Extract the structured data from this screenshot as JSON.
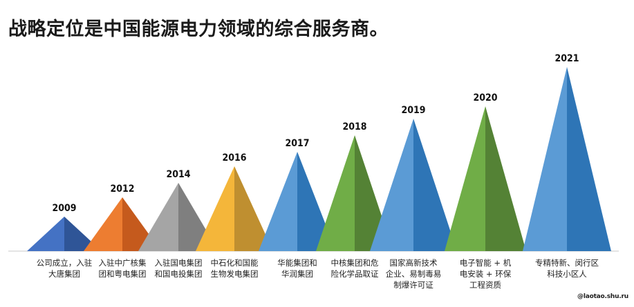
{
  "title": "战略定位是中国能源电力领域的综合服务商。",
  "milestones": [
    {
      "year": "2009",
      "label": "公司成立，入驻\n大唐集团",
      "color_left": "#4472c4",
      "color_right": "#2f5597"
    },
    {
      "year": "2012",
      "label": "入驻中广核集\n团和粤电集团",
      "color_left": "#ed7d31",
      "color_right": "#c55a1d"
    },
    {
      "year": "2014",
      "label": "入驻国电集团\n和国电投集团",
      "color_left": "#a5a5a5",
      "color_right": "#7f7f7f"
    },
    {
      "year": "2016",
      "label": "中石化和国能\n生物发电集团",
      "color_left": "#f4b63a",
      "color_right": "#bf8f30"
    },
    {
      "year": "2017",
      "label": "华能集团和\n华润集团",
      "color_left": "#5b9bd5",
      "color_right": "#2e75b6"
    },
    {
      "year": "2018",
      "label": "中核集团和危\n险化学品取证",
      "color_left": "#70ad47",
      "color_right": "#548235"
    },
    {
      "year": "2019",
      "label": "国家高新技术\n企业、易制毒易\n制爆许可证",
      "color_left": "#5b9bd5",
      "color_right": "#2e75b6"
    },
    {
      "year": "2020",
      "label": "电子智能 + 机\n电安装 + 环保\n工程资质",
      "color_left": "#70ad47",
      "color_right": "#548235"
    },
    {
      "year": "2021",
      "label": "专精特新、闵行区\n科技小区人",
      "color_left": "#5b9bd5",
      "color_right": "#2e75b6"
    }
  ],
  "watermark": "@laotao.shu.ru"
}
